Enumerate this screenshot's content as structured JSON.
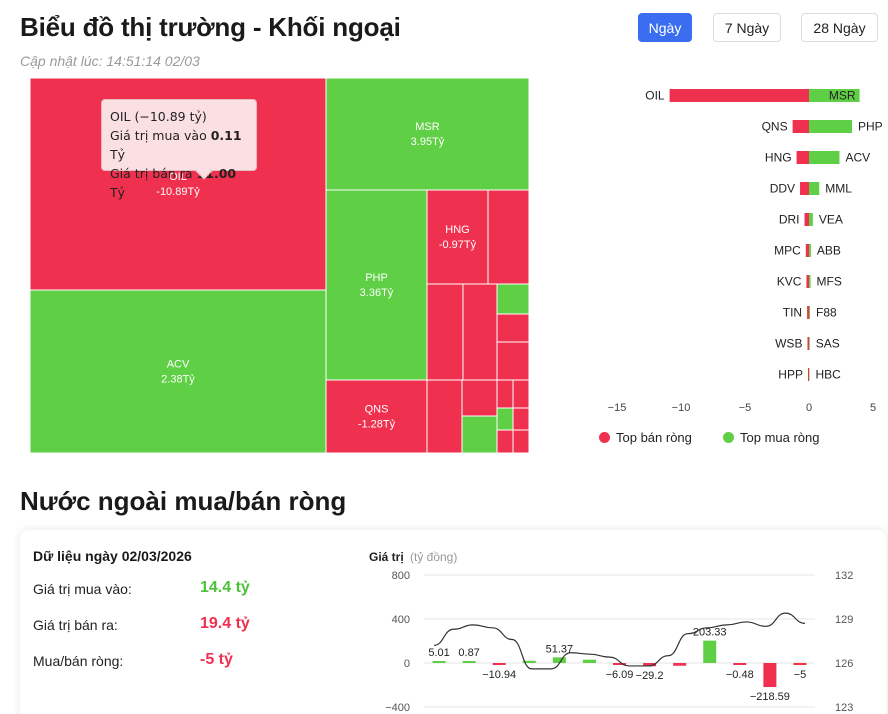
{
  "header": {
    "title": "Biểu đồ thị trường - Khối ngoại",
    "updated": "Cập nhật lúc: 14:51:14 02/03",
    "tabs": [
      {
        "label": "Ngày",
        "active": true
      },
      {
        "label": "7 Ngày",
        "active": false
      },
      {
        "label": "28 Ngày",
        "active": false
      }
    ]
  },
  "colors": {
    "sell": "#f0304f",
    "buy": "#5fcf45",
    "accent": "#3a6df0",
    "line": "#333333"
  },
  "tooltip": {
    "title": "OIL (−10.89 tỷ)",
    "buy_label": "Giá trị mua vào",
    "buy_value": "0.11",
    "sell_label": "Giá trị bán ra",
    "sell_value": "11.00",
    "unit": "Tỷ"
  },
  "treemap": {
    "labeled_tiles": [
      {
        "code": "OIL",
        "value": "-10.89Tỷ",
        "side": "sell"
      },
      {
        "code": "MSR",
        "value": "3.95Tỷ",
        "side": "buy"
      },
      {
        "code": "ACV",
        "value": "2.38Tỷ",
        "side": "buy"
      },
      {
        "code": "PHP",
        "value": "3.36Tỷ",
        "side": "buy"
      },
      {
        "code": "HNG",
        "value": "-0.97Tỷ",
        "side": "sell"
      },
      {
        "code": "QNS",
        "value": "-1.28Tỷ",
        "side": "sell"
      }
    ]
  },
  "chart_data": [
    {
      "type": "bar",
      "orientation": "horizontal",
      "xlim": [
        -15,
        5
      ],
      "x_ticks": [
        "−15",
        "−10",
        "−5",
        "0",
        "5"
      ],
      "legend": [
        "Top bán ròng",
        "Top mua ròng"
      ],
      "rows": [
        {
          "sell": "OIL",
          "sell_value": -10.89,
          "buy": "MSR",
          "buy_value": 3.95
        },
        {
          "sell": "QNS",
          "sell_value": -1.28,
          "buy": "PHP",
          "buy_value": 3.36
        },
        {
          "sell": "HNG",
          "sell_value": -0.97,
          "buy": "ACV",
          "buy_value": 2.38
        },
        {
          "sell": "DDV",
          "sell_value": -0.7,
          "buy": "MML",
          "buy_value": 0.8
        },
        {
          "sell": "DRI",
          "sell_value": -0.35,
          "buy": "VEA",
          "buy_value": 0.3
        },
        {
          "sell": "MPC",
          "sell_value": -0.25,
          "buy": "ABB",
          "buy_value": 0.15
        },
        {
          "sell": "KVC",
          "sell_value": -0.2,
          "buy": "MFS",
          "buy_value": 0.12
        },
        {
          "sell": "TIN",
          "sell_value": -0.15,
          "buy": "F88",
          "buy_value": 0.08
        },
        {
          "sell": "WSB",
          "sell_value": -0.12,
          "buy": "SAS",
          "buy_value": 0.06
        },
        {
          "sell": "HPP",
          "sell_value": -0.08,
          "buy": "HBC",
          "buy_value": 0.04
        }
      ]
    },
    {
      "type": "bar+line",
      "ylabel": "Giá trị",
      "yunit": "(tỷ đồng)",
      "ylim": [
        -400,
        800
      ],
      "y_ticks": [
        "800",
        "400",
        "0",
        "−400"
      ],
      "y2lim": [
        123,
        132
      ],
      "y2_ticks": [
        "132",
        "129",
        "126",
        "123"
      ],
      "bars": [
        {
          "value": 5.01,
          "label": "5.01"
        },
        {
          "value": 0.87,
          "label": "0.87"
        },
        {
          "value": -10.94,
          "label": "−10.94"
        },
        {
          "value": 20,
          "label": ""
        },
        {
          "value": 51.37,
          "label": "51.37"
        },
        {
          "value": 30,
          "label": ""
        },
        {
          "value": -6.09,
          "label": "−6.09"
        },
        {
          "value": -29.2,
          "label": "−29.2"
        },
        {
          "value": -25,
          "label": ""
        },
        {
          "value": 203.33,
          "label": "203.33"
        },
        {
          "value": -0.48,
          "label": "−0.48"
        },
        {
          "value": -218.59,
          "label": "−218.59"
        },
        {
          "value": -5,
          "label": "−5"
        }
      ],
      "line": [
        127.2,
        128.3,
        128.6,
        128.4,
        127.6,
        125.6,
        125.6,
        126.7,
        126.6,
        126.4,
        125.8,
        125.8,
        126.5,
        128.0,
        128.4,
        128.6,
        128.8,
        128.5,
        129.4,
        128.7
      ]
    }
  ],
  "summary": {
    "date_label": "Dữ liệu ngày 02/03/2026",
    "buy_label": "Giá trị mua vào:",
    "buy_value": "14.4 tỷ",
    "sell_label": "Giá trị bán ra:",
    "sell_value": "19.4 tỷ",
    "net_label": "Mua/bán ròng:",
    "net_value": "-5 tỷ"
  },
  "section2_title": "Nước ngoài mua/bán ròng"
}
